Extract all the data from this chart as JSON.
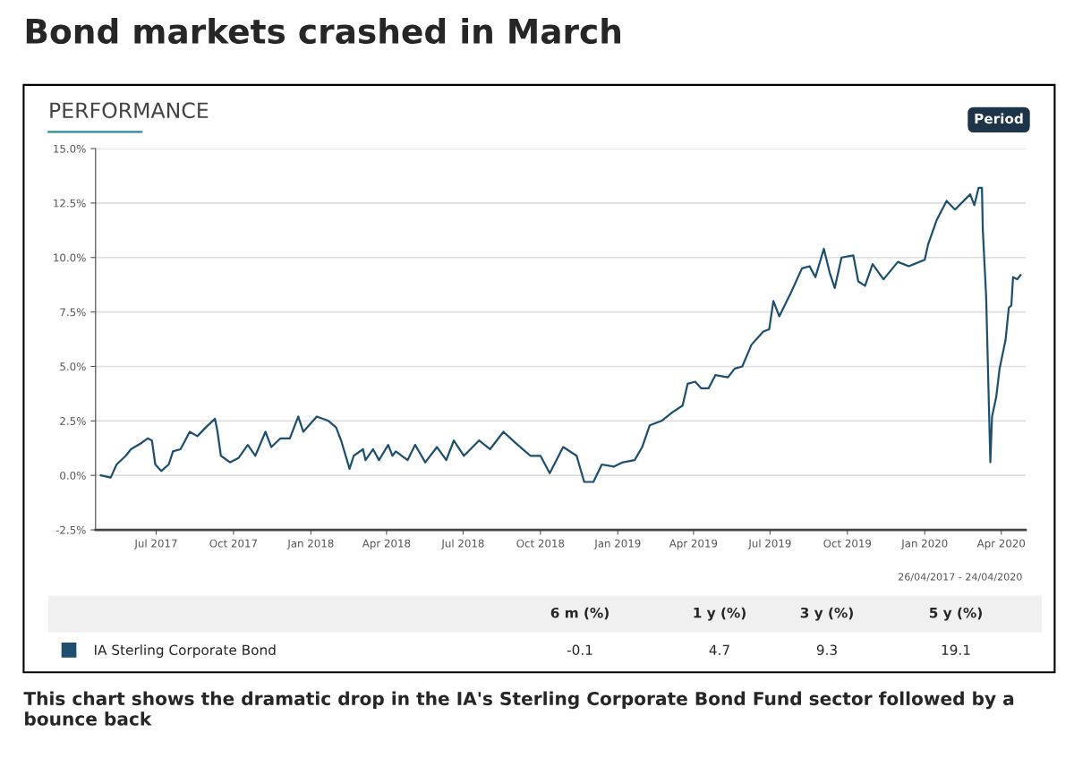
{
  "chart_data": {
    "type": "line",
    "title": "Bond markets crashed in March",
    "subtitle": "PERFORMANCE",
    "x": [
      "2017-04-26",
      "2017-05-08",
      "2017-05-15",
      "2017-05-26",
      "2017-06-01",
      "2017-06-14",
      "2017-06-21",
      "2017-06-26",
      "2017-06-30",
      "2017-07-07",
      "2017-07-16",
      "2017-07-21",
      "2017-07-30",
      "2017-08-10",
      "2017-08-19",
      "2017-08-29",
      "2017-09-09",
      "2017-09-12",
      "2017-09-16",
      "2017-09-27",
      "2017-10-07",
      "2017-10-18",
      "2017-10-27",
      "2017-11-08",
      "2017-11-15",
      "2017-11-26",
      "2017-12-07",
      "2017-12-17",
      "2017-12-23",
      "2018-01-08",
      "2018-01-22",
      "2018-01-31",
      "2018-02-06",
      "2018-02-16",
      "2018-02-21",
      "2018-03-04",
      "2018-03-07",
      "2018-03-16",
      "2018-03-23",
      "2018-04-03",
      "2018-04-08",
      "2018-04-12",
      "2018-04-26",
      "2018-05-05",
      "2018-05-17",
      "2018-05-31",
      "2018-06-11",
      "2018-06-20",
      "2018-07-02",
      "2018-07-20",
      "2018-08-02",
      "2018-08-18",
      "2018-09-01",
      "2018-09-19",
      "2018-10-01",
      "2018-10-12",
      "2018-10-28",
      "2018-11-13",
      "2018-11-22",
      "2018-12-03",
      "2018-12-13",
      "2018-12-27",
      "2019-01-07",
      "2019-01-21",
      "2019-01-30",
      "2019-02-08",
      "2019-02-22",
      "2019-03-07",
      "2019-03-19",
      "2019-03-25",
      "2019-04-03",
      "2019-04-10",
      "2019-04-19",
      "2019-04-27",
      "2019-05-12",
      "2019-05-20",
      "2019-05-29",
      "2019-06-09",
      "2019-06-23",
      "2019-06-30",
      "2019-07-05",
      "2019-07-12",
      "2019-07-26",
      "2019-08-08",
      "2019-08-17",
      "2019-08-24",
      "2019-09-03",
      "2019-09-10",
      "2019-09-16",
      "2019-09-24",
      "2019-10-08",
      "2019-10-14",
      "2019-10-22",
      "2019-10-31",
      "2019-11-13",
      "2019-11-30",
      "2019-12-13",
      "2020-01-01",
      "2020-01-05",
      "2020-01-15",
      "2020-01-27",
      "2020-02-06",
      "2020-02-24",
      "2020-02-29",
      "2020-03-05",
      "2020-03-09",
      "2020-03-10",
      "2020-03-14",
      "2020-03-19",
      "2020-03-21",
      "2020-03-26",
      "2020-03-30",
      "2020-04-06",
      "2020-04-10",
      "2020-04-13",
      "2020-04-15",
      "2020-04-20",
      "2020-04-24"
    ],
    "series": [
      {
        "name": "IA Sterling Corporate Bond",
        "color": "#1d4f6e",
        "values": [
          0.0,
          -0.1,
          0.5,
          0.9,
          1.2,
          1.5,
          1.7,
          1.6,
          0.5,
          0.2,
          0.5,
          1.1,
          1.2,
          2.0,
          1.8,
          2.2,
          2.6,
          2.0,
          0.9,
          0.6,
          0.8,
          1.4,
          0.9,
          2.0,
          1.3,
          1.7,
          1.7,
          2.7,
          2.0,
          2.7,
          2.5,
          2.2,
          1.6,
          0.3,
          0.9,
          1.2,
          0.7,
          1.2,
          0.7,
          1.4,
          0.9,
          1.1,
          0.7,
          1.4,
          0.6,
          1.3,
          0.7,
          1.6,
          0.9,
          1.6,
          1.2,
          2.0,
          1.5,
          0.9,
          0.9,
          0.1,
          1.3,
          0.9,
          -0.3,
          -0.3,
          0.5,
          0.4,
          0.6,
          0.7,
          1.3,
          2.3,
          2.5,
          2.9,
          3.2,
          4.2,
          4.3,
          4.0,
          4.0,
          4.6,
          4.5,
          4.9,
          5.0,
          6.0,
          6.6,
          6.7,
          8.0,
          7.3,
          8.4,
          9.5,
          9.6,
          9.1,
          10.4,
          9.3,
          8.6,
          10.0,
          10.1,
          8.9,
          8.7,
          9.7,
          9.0,
          9.8,
          9.6,
          9.9,
          10.6,
          11.7,
          12.6,
          12.2,
          12.9,
          12.4,
          13.2,
          13.2,
          11.3,
          8.2,
          0.6,
          2.7,
          3.6,
          4.9,
          6.2,
          7.7,
          7.8,
          9.1,
          9.0,
          9.2
        ]
      }
    ],
    "xlim": [
      "2017-04-20",
      "2020-04-30"
    ],
    "xticks": [
      {
        "value": "2017-07-01",
        "label": "Jul 2017"
      },
      {
        "value": "2017-10-01",
        "label": "Oct 2017"
      },
      {
        "value": "2018-01-01",
        "label": "Jan 2018"
      },
      {
        "value": "2018-04-01",
        "label": "Apr 2018"
      },
      {
        "value": "2018-07-01",
        "label": "Jul 2018"
      },
      {
        "value": "2018-10-01",
        "label": "Oct 2018"
      },
      {
        "value": "2019-01-01",
        "label": "Jan 2019"
      },
      {
        "value": "2019-04-01",
        "label": "Apr 2019"
      },
      {
        "value": "2019-07-01",
        "label": "Jul 2019"
      },
      {
        "value": "2019-10-01",
        "label": "Oct 2019"
      },
      {
        "value": "2020-01-01",
        "label": "Jan 2020"
      },
      {
        "value": "2020-04-01",
        "label": "Apr 2020"
      }
    ],
    "ylim": [
      -2.5,
      15
    ],
    "yticks": [
      {
        "value": -2.5,
        "label": "-2.5%"
      },
      {
        "value": 0,
        "label": "0.0%"
      },
      {
        "value": 2.5,
        "label": "2.5%"
      },
      {
        "value": 5,
        "label": "5.0%"
      },
      {
        "value": 7.5,
        "label": "7.5%"
      },
      {
        "value": 10,
        "label": "10.0%"
      },
      {
        "value": 12.5,
        "label": "12.5%"
      },
      {
        "value": 15,
        "label": "15.0%"
      }
    ],
    "grid": "y",
    "legend": "bottom",
    "marker": "none",
    "line_style": "solid",
    "annotations": [
      "26/04/2017 - 24/04/2020",
      "Period",
      "6 m (%)",
      "1 y (%)",
      "3 y (%)",
      "5 y (%)",
      "-0.1",
      "4.7",
      "9.3",
      "19.1",
      "This chart shows the dramatic drop in the IA's Sterling Corporate Bond Fund sector followed by a bounce back"
    ]
  }
}
